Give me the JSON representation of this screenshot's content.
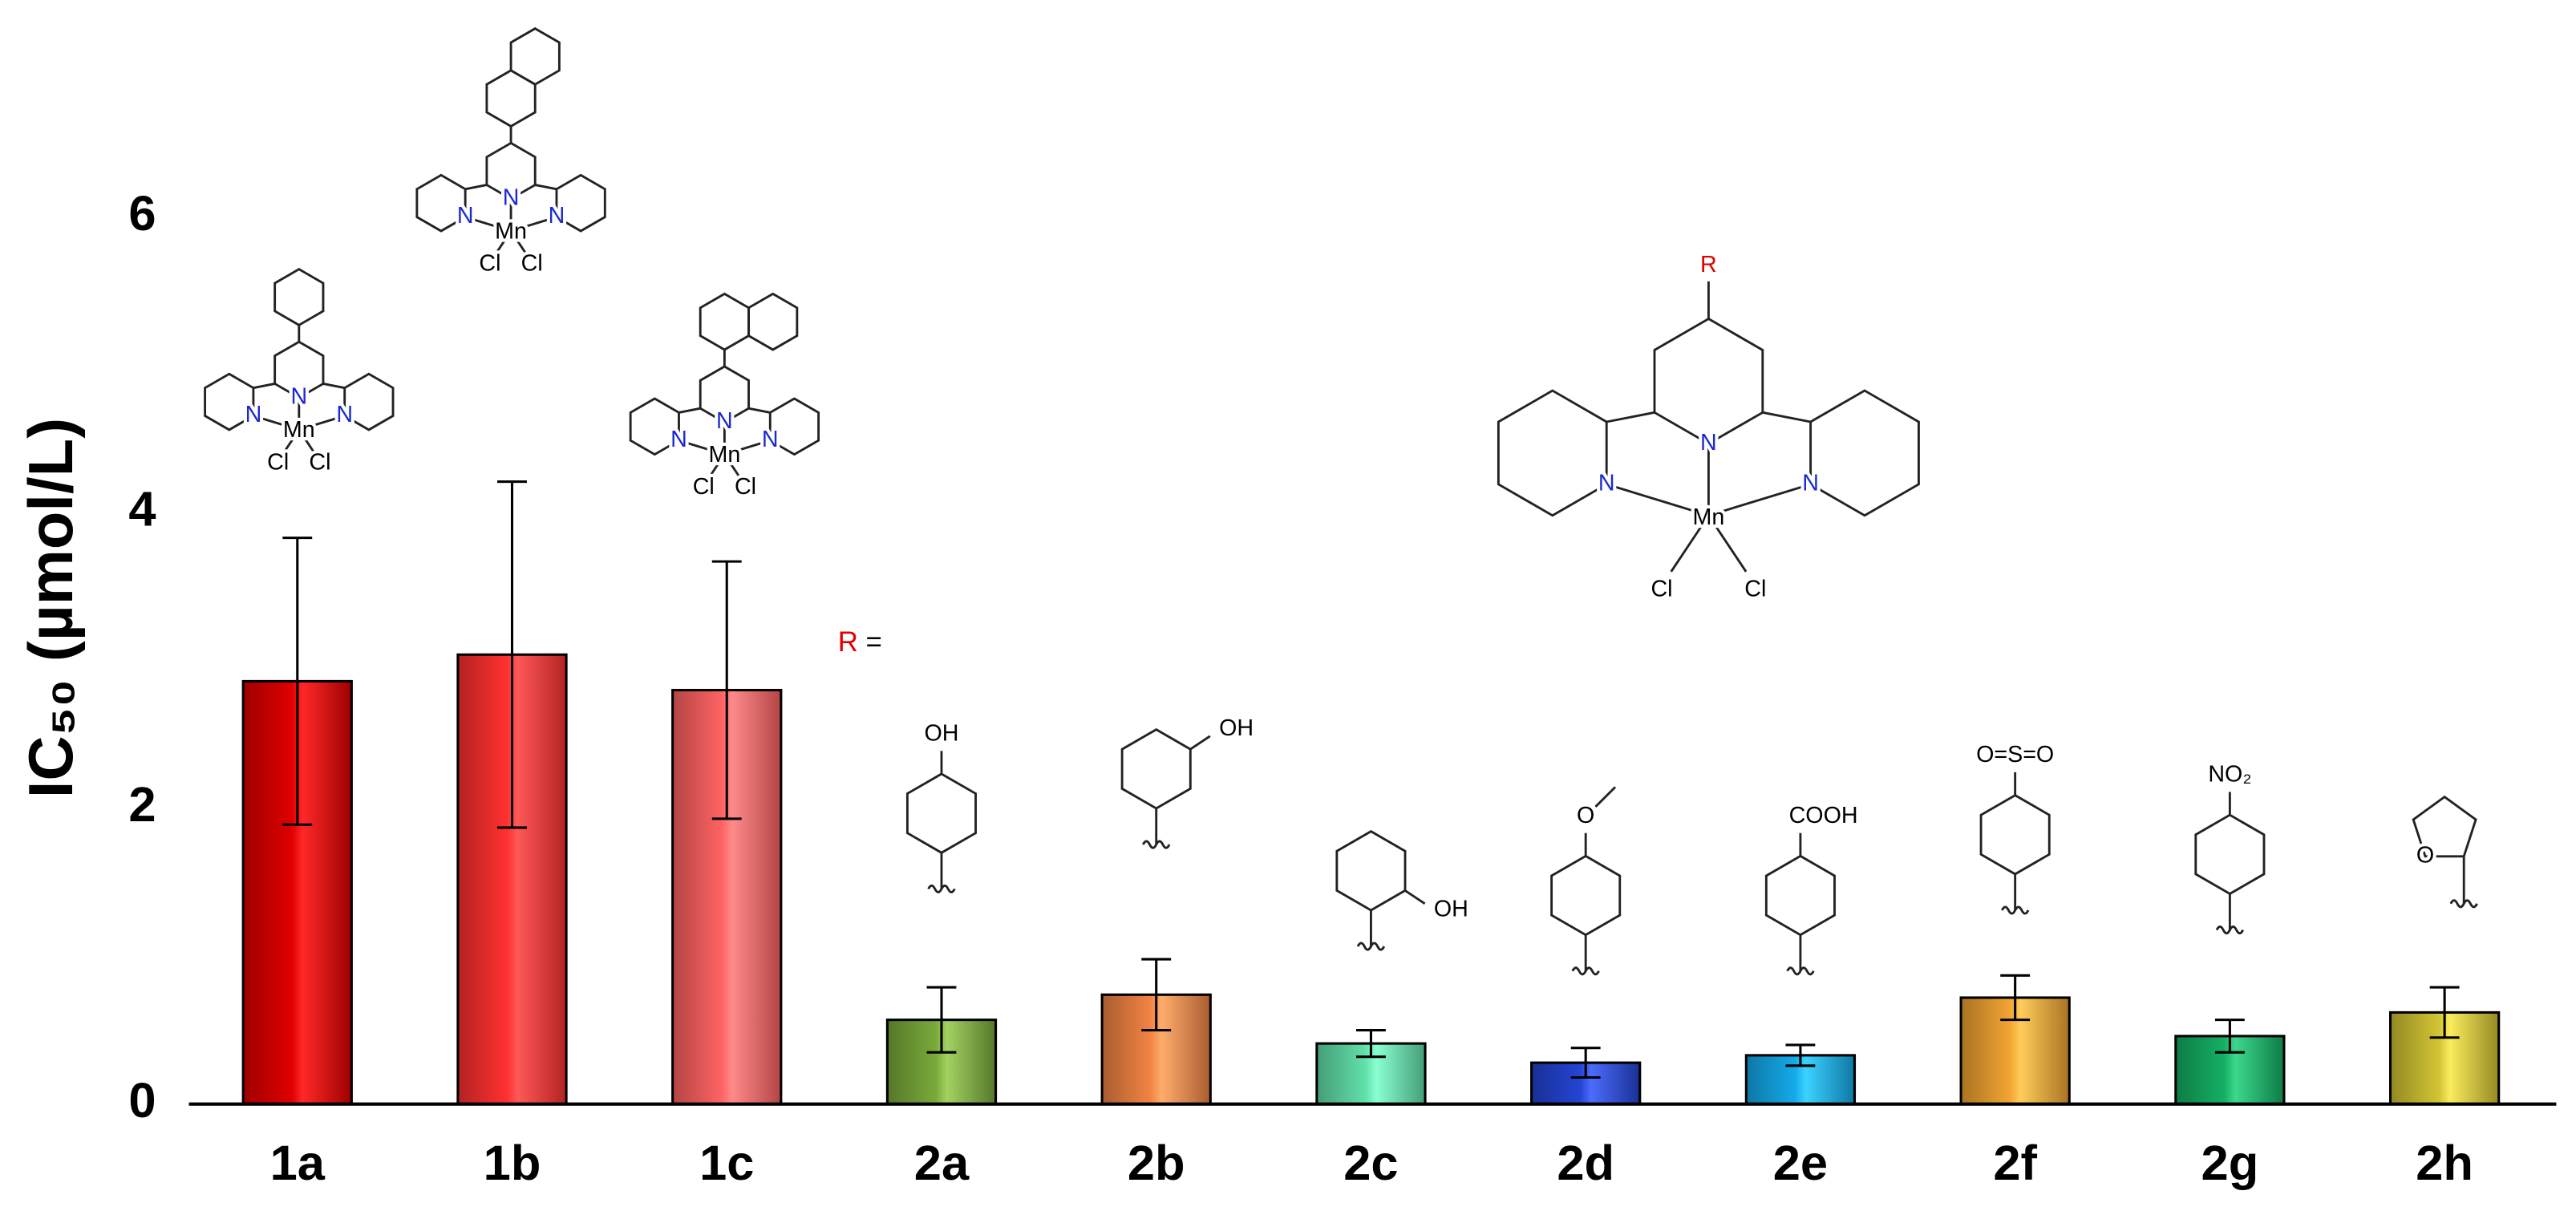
{
  "chart_data": {
    "type": "bar",
    "y_label": "IC₅₀ (µmol/L)",
    "categories": [
      "1a",
      "1b",
      "1c",
      "2a",
      "2b",
      "2c",
      "2d",
      "2e",
      "2f",
      "2g",
      "2h"
    ],
    "values": [
      2.86,
      3.04,
      2.8,
      0.57,
      0.74,
      0.41,
      0.28,
      0.33,
      0.72,
      0.46,
      0.62
    ],
    "errors": [
      0.97,
      1.17,
      0.87,
      0.22,
      0.24,
      0.09,
      0.1,
      0.07,
      0.15,
      0.11,
      0.17
    ],
    "colors": [
      "#e00000",
      "#ff3030",
      "#ff6262",
      "#7aaa3a",
      "#f28444",
      "#62e0aa",
      "#2444d4",
      "#14aaea",
      "#f2a432",
      "#14b064",
      "#d2c434"
    ],
    "ylim": [
      0,
      6
    ],
    "yticks": [
      0,
      2,
      4,
      6
    ]
  },
  "structures": {
    "n": "N",
    "mn": "Mn",
    "cl": "Cl",
    "r": "R",
    "equals": "=",
    "substituents": [
      "OH",
      "OH",
      "OH",
      "O",
      "COOH",
      "O=S=O",
      "NO₂",
      "O"
    ]
  }
}
